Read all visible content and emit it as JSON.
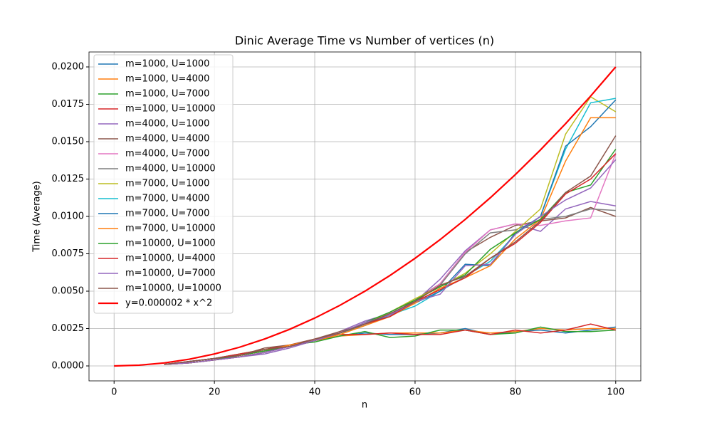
{
  "chart_data": {
    "type": "line",
    "title": "Dinic Average Time vs Number of vertices (n)",
    "xlabel": "n",
    "ylabel": "Time (Average)",
    "xlim": [
      -5,
      105
    ],
    "ylim": [
      -0.001,
      0.021
    ],
    "xticks": [
      0,
      20,
      40,
      60,
      80,
      100
    ],
    "yticks": [
      {
        "value": 0,
        "label": "0.0000"
      },
      0.0025,
      {
        "value": 0.005,
        "label": "0.0050"
      },
      0.0075,
      {
        "value": 0.01,
        "label": "0.0100"
      },
      0.0125,
      {
        "value": 0.015,
        "label": "0.0150"
      },
      0.0175,
      {
        "value": 0.02,
        "label": "0.0200"
      }
    ],
    "grid": true,
    "legend": "upper left",
    "series": [
      {
        "name": "m=1000, U=1000",
        "color": "#1f77b4",
        "x": [
          10,
          15,
          20,
          25,
          30,
          35,
          40,
          45,
          50,
          55,
          60,
          65,
          70,
          75,
          80,
          85,
          90,
          95,
          100
        ],
        "values": [
          0.0001,
          0.0002,
          0.0004,
          0.0007,
          0.001,
          0.0013,
          0.0017,
          0.002,
          0.0022,
          0.0021,
          0.0021,
          0.0022,
          0.0025,
          0.0021,
          0.0023,
          0.0024,
          0.0022,
          0.0024,
          0.0026
        ]
      },
      {
        "name": "m=1000, U=4000",
        "color": "#ff7f0e",
        "x": [
          10,
          15,
          20,
          25,
          30,
          35,
          40,
          45,
          50,
          55,
          60,
          65,
          70,
          75,
          80,
          85,
          90,
          95,
          100
        ],
        "values": [
          0.0001,
          0.0003,
          0.0005,
          0.0007,
          0.001,
          0.0014,
          0.0017,
          0.002,
          0.0021,
          0.0022,
          0.0022,
          0.0022,
          0.0024,
          0.0022,
          0.0023,
          0.0025,
          0.0024,
          0.0025,
          0.0025
        ]
      },
      {
        "name": "m=1000, U=7000",
        "color": "#2ca02c",
        "x": [
          10,
          15,
          20,
          25,
          30,
          35,
          40,
          45,
          50,
          55,
          60,
          65,
          70,
          75,
          80,
          85,
          90,
          95,
          100
        ],
        "values": [
          0.0001,
          0.0003,
          0.0005,
          0.0008,
          0.0011,
          0.0014,
          0.0016,
          0.002,
          0.0023,
          0.0019,
          0.002,
          0.0024,
          0.0024,
          0.0021,
          0.0022,
          0.0026,
          0.0023,
          0.0023,
          0.0024
        ]
      },
      {
        "name": "m=1000, U=10000",
        "color": "#d62728",
        "x": [
          10,
          15,
          20,
          25,
          30,
          35,
          40,
          45,
          50,
          55,
          60,
          65,
          70,
          75,
          80,
          85,
          90,
          95,
          100
        ],
        "values": [
          0.0001,
          0.0003,
          0.0005,
          0.0008,
          0.0011,
          0.0014,
          0.0018,
          0.0021,
          0.0021,
          0.0022,
          0.0021,
          0.0021,
          0.0024,
          0.0021,
          0.0024,
          0.0022,
          0.0024,
          0.0028,
          0.0024
        ]
      },
      {
        "name": "m=4000, U=1000",
        "color": "#9467bd",
        "x": [
          10,
          15,
          20,
          25,
          30,
          35,
          40,
          45,
          50,
          55,
          60,
          65,
          70,
          75,
          80,
          85,
          90,
          95,
          100
        ],
        "values": [
          0.0001,
          0.0002,
          0.0004,
          0.0006,
          0.0008,
          0.0012,
          0.0017,
          0.0023,
          0.003,
          0.0035,
          0.0043,
          0.0058,
          0.0077,
          0.0091,
          0.0095,
          0.009,
          0.0105,
          0.011,
          0.0107
        ]
      },
      {
        "name": "m=4000, U=4000",
        "color": "#8c564b",
        "x": [
          10,
          15,
          20,
          25,
          30,
          35,
          40,
          45,
          50,
          55,
          60,
          65,
          70,
          75,
          80,
          85,
          90,
          95,
          100
        ],
        "values": [
          0.0001,
          0.0003,
          0.0005,
          0.0007,
          0.0012,
          0.0014,
          0.0018,
          0.0023,
          0.0028,
          0.0034,
          0.0044,
          0.0055,
          0.0076,
          0.0086,
          0.0094,
          0.0097,
          0.0099,
          0.0106,
          0.01
        ]
      },
      {
        "name": "m=4000, U=7000",
        "color": "#e377c2",
        "x": [
          10,
          15,
          20,
          25,
          30,
          35,
          40,
          45,
          50,
          55,
          60,
          65,
          70,
          75,
          80,
          85,
          90,
          95,
          100
        ],
        "values": [
          0.0001,
          0.0002,
          0.0004,
          0.0006,
          0.0009,
          0.0013,
          0.0017,
          0.0022,
          0.0029,
          0.0035,
          0.0043,
          0.0055,
          0.0076,
          0.0091,
          0.0095,
          0.0094,
          0.0097,
          0.0099,
          0.0142
        ]
      },
      {
        "name": "m=4000, U=10000",
        "color": "#7f7f7f",
        "x": [
          10,
          15,
          20,
          25,
          30,
          35,
          40,
          45,
          50,
          55,
          60,
          65,
          70,
          75,
          80,
          85,
          90,
          95,
          100
        ],
        "values": [
          0.0001,
          0.0002,
          0.0004,
          0.0006,
          0.0009,
          0.0013,
          0.0017,
          0.0022,
          0.0028,
          0.0034,
          0.0043,
          0.0054,
          0.0075,
          0.0089,
          0.0091,
          0.0098,
          0.01,
          0.0105,
          0.0104
        ]
      },
      {
        "name": "m=7000, U=1000",
        "color": "#bcbd22",
        "x": [
          10,
          15,
          20,
          25,
          30,
          35,
          40,
          45,
          50,
          55,
          60,
          65,
          70,
          75,
          80,
          85,
          90,
          95,
          100
        ],
        "values": [
          0.0001,
          0.0002,
          0.0004,
          0.0007,
          0.001,
          0.0013,
          0.0017,
          0.0022,
          0.0028,
          0.0036,
          0.0045,
          0.0053,
          0.0062,
          0.0075,
          0.009,
          0.0105,
          0.0155,
          0.018,
          0.017
        ]
      },
      {
        "name": "m=7000, U=4000",
        "color": "#17becf",
        "x": [
          10,
          15,
          20,
          25,
          30,
          35,
          40,
          45,
          50,
          55,
          60,
          65,
          70,
          75,
          80,
          85,
          90,
          95,
          100
        ],
        "values": [
          0.0001,
          0.0002,
          0.0004,
          0.0006,
          0.0009,
          0.0013,
          0.0017,
          0.0022,
          0.0027,
          0.0034,
          0.004,
          0.005,
          0.006,
          0.007,
          0.0088,
          0.01,
          0.0145,
          0.0176,
          0.0179
        ]
      },
      {
        "name": "m=7000, U=7000",
        "color": "#1f77b4",
        "x": [
          10,
          15,
          20,
          25,
          30,
          35,
          40,
          45,
          50,
          55,
          60,
          65,
          70,
          75,
          80,
          85,
          90,
          95,
          100
        ],
        "values": [
          0.0001,
          0.0003,
          0.0005,
          0.0007,
          0.001,
          0.0013,
          0.0017,
          0.0022,
          0.0028,
          0.0034,
          0.0042,
          0.005,
          0.0068,
          0.0067,
          0.0089,
          0.01,
          0.0147,
          0.016,
          0.0178
        ]
      },
      {
        "name": "m=7000, U=10000",
        "color": "#ff7f0e",
        "x": [
          10,
          15,
          20,
          25,
          30,
          35,
          40,
          45,
          50,
          55,
          60,
          65,
          70,
          75,
          80,
          85,
          90,
          95,
          100
        ],
        "values": [
          0.0001,
          0.0002,
          0.0004,
          0.0007,
          0.001,
          0.0014,
          0.0017,
          0.0021,
          0.0027,
          0.0033,
          0.0042,
          0.0052,
          0.0059,
          0.0067,
          0.0085,
          0.0098,
          0.0137,
          0.0166,
          0.0166
        ]
      },
      {
        "name": "m=10000, U=1000",
        "color": "#2ca02c",
        "x": [
          10,
          15,
          20,
          25,
          30,
          35,
          40,
          45,
          50,
          55,
          60,
          65,
          70,
          75,
          80,
          85,
          90,
          95,
          100
        ],
        "values": [
          0.0001,
          0.0002,
          0.0004,
          0.0007,
          0.001,
          0.0013,
          0.0017,
          0.0022,
          0.0029,
          0.0036,
          0.0044,
          0.0053,
          0.0061,
          0.0078,
          0.0089,
          0.0098,
          0.0116,
          0.0121,
          0.0145
        ]
      },
      {
        "name": "m=10000, U=4000",
        "color": "#d62728",
        "x": [
          10,
          15,
          20,
          25,
          30,
          35,
          40,
          45,
          50,
          55,
          60,
          65,
          70,
          75,
          80,
          85,
          90,
          95,
          100
        ],
        "values": [
          0.0001,
          0.0002,
          0.0004,
          0.0006,
          0.0009,
          0.0013,
          0.0017,
          0.0022,
          0.0028,
          0.0033,
          0.0043,
          0.0051,
          0.0059,
          0.0072,
          0.0082,
          0.0096,
          0.0115,
          0.0125,
          0.0142
        ]
      },
      {
        "name": "m=10000, U=7000",
        "color": "#9467bd",
        "x": [
          10,
          15,
          20,
          25,
          30,
          35,
          40,
          45,
          50,
          55,
          60,
          65,
          70,
          75,
          80,
          85,
          90,
          95,
          100
        ],
        "values": [
          0.0001,
          0.0002,
          0.0004,
          0.0006,
          0.0009,
          0.0013,
          0.0017,
          0.0022,
          0.0029,
          0.0034,
          0.0043,
          0.0048,
          0.0067,
          0.0068,
          0.0088,
          0.01,
          0.0111,
          0.0119,
          0.0138
        ]
      },
      {
        "name": "m=10000, U=10000",
        "color": "#8c564b",
        "x": [
          10,
          15,
          20,
          25,
          30,
          35,
          40,
          45,
          50,
          55,
          60,
          65,
          70,
          75,
          80,
          85,
          90,
          95,
          100
        ],
        "values": [
          0.0001,
          0.0003,
          0.0005,
          0.0007,
          0.0011,
          0.0013,
          0.0018,
          0.0022,
          0.0028,
          0.0035,
          0.0043,
          0.0054,
          0.006,
          0.0072,
          0.0083,
          0.0097,
          0.0116,
          0.0127,
          0.0154
        ]
      },
      {
        "name": "y=0.000002 * x^2",
        "color": "#ff0000",
        "width": 2.2,
        "x": [
          0,
          5,
          10,
          15,
          20,
          25,
          30,
          35,
          40,
          45,
          50,
          55,
          60,
          65,
          70,
          75,
          80,
          85,
          90,
          95,
          100
        ],
        "values": [
          0,
          5e-05,
          0.0002,
          0.00045,
          0.0008,
          0.00125,
          0.0018,
          0.00245,
          0.0032,
          0.00405,
          0.005,
          0.00605,
          0.0072,
          0.00845,
          0.0098,
          0.01125,
          0.0128,
          0.01445,
          0.0162,
          0.01805,
          0.02
        ]
      }
    ]
  }
}
